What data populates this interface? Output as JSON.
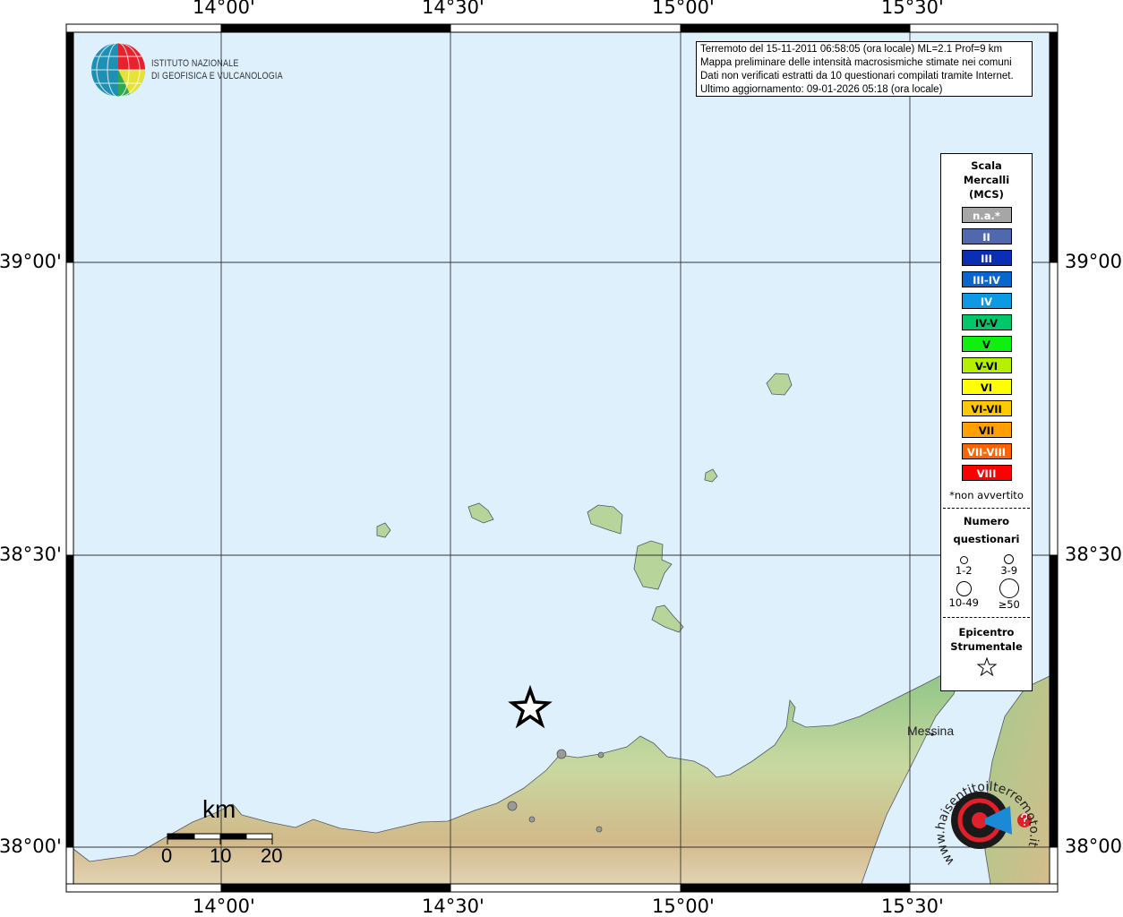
{
  "axes": {
    "longitude_ticks": [
      "14°00'",
      "14°30'",
      "15°00'",
      "15°30'"
    ],
    "latitude_ticks": [
      "39°00'",
      "38°30'",
      "38°00'"
    ]
  },
  "logo": {
    "line1": "ISTITUTO NAZIONALE",
    "line2": "DI GEOFISICA E VULCANOLOGIA"
  },
  "info_box": {
    "line1": "Terremoto del 15-11-2011 06:58:05 (ora locale) ML=2.1 Prof=9 km",
    "line2": "Mappa preliminare delle intensità macrosismiche stimate nei comuni",
    "line3": "Dati non verificati estratti da 10 questionari compilati tramite Internet.",
    "line4": "Ultimo aggiornamento: 09-01-2026 05:18 (ora locale)"
  },
  "legend": {
    "title": [
      "Scala",
      "Mercalli",
      "(MCS)"
    ],
    "intensities": [
      {
        "label": "n.a.*",
        "color": "#a6a6a6"
      },
      {
        "label": "II",
        "color": "#5068ae"
      },
      {
        "label": "III",
        "color": "#0a2fb4"
      },
      {
        "label": "III-IV",
        "color": "#0a66cc"
      },
      {
        "label": "IV",
        "color": "#0c9ae4"
      },
      {
        "label": "IV-V",
        "color": "#00c86a"
      },
      {
        "label": "V",
        "color": "#10f010"
      },
      {
        "label": "V-VI",
        "color": "#b4f000"
      },
      {
        "label": "VI",
        "color": "#ffff00"
      },
      {
        "label": "VI-VII",
        "color": "#ffc800"
      },
      {
        "label": "VII",
        "color": "#ffa000"
      },
      {
        "label": "VII-VIII",
        "color": "#ff6400"
      },
      {
        "label": "VIII",
        "color": "#ff0000"
      }
    ],
    "note": "*non avvertito",
    "questionnaires_title": [
      "Numero",
      "questionari"
    ],
    "questionnaire_sizes": [
      "1-2",
      "3-9",
      "10-49",
      "≥50"
    ],
    "epicenter_title": [
      "Epicentro",
      "Strumentale"
    ]
  },
  "scale_bar": {
    "unit": "km",
    "labels": [
      "0",
      "10",
      "20"
    ]
  },
  "places": {
    "messina": "Messina"
  },
  "watermark": {
    "text": "www.haisentitoilterremoto.it"
  },
  "colors": {
    "sea": "#dff0fd",
    "land": "#9cc98f",
    "epicenter": "#000000",
    "marker": "#9a9a9a"
  }
}
